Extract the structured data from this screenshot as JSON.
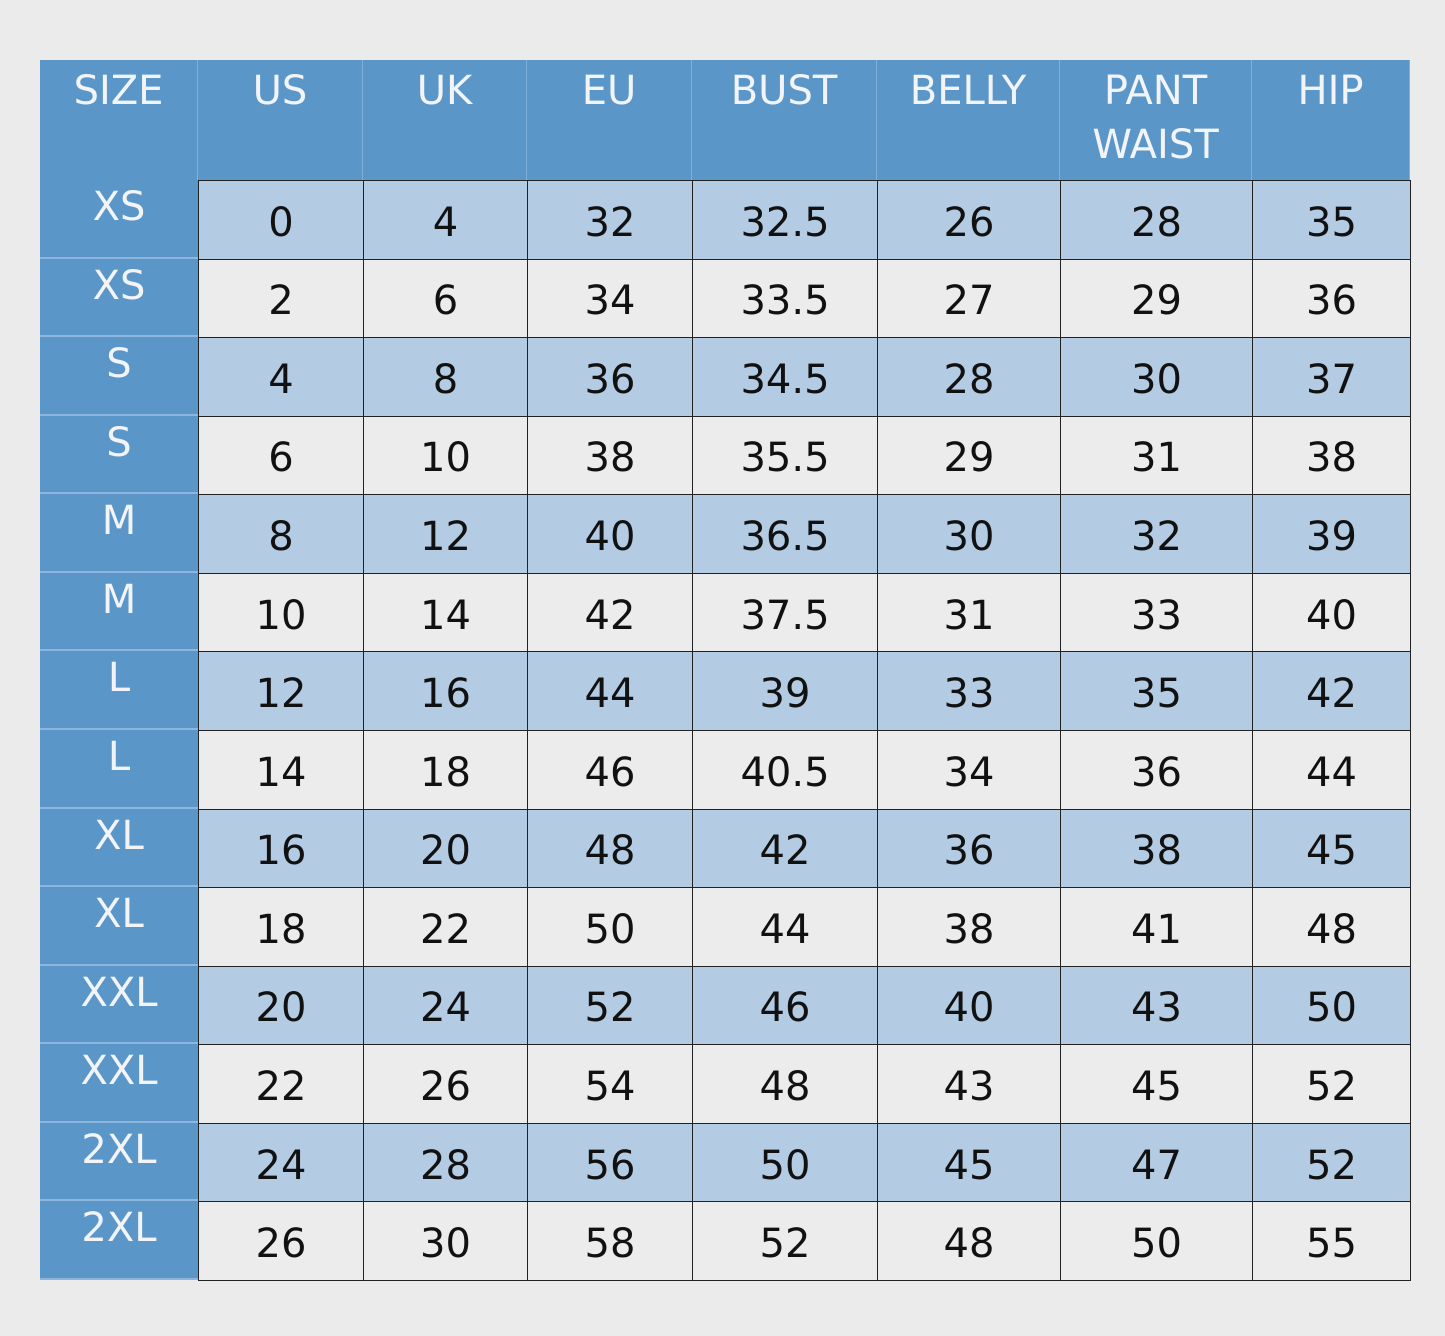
{
  "table": {
    "columns": [
      "SIZE",
      "US",
      "UK",
      "EU",
      "BUST",
      "BELLY",
      "PANT WAIST",
      "HIP"
    ],
    "rows": [
      [
        "XS",
        0,
        4,
        32,
        32.5,
        26,
        28,
        35
      ],
      [
        "XS",
        2,
        6,
        34,
        33.5,
        27,
        29,
        36
      ],
      [
        "S",
        4,
        8,
        36,
        34.5,
        28,
        30,
        37
      ],
      [
        "S",
        6,
        10,
        38,
        35.5,
        29,
        31,
        38
      ],
      [
        "M",
        8,
        12,
        40,
        36.5,
        30,
        32,
        39
      ],
      [
        "M",
        10,
        14,
        42,
        37.5,
        31,
        33,
        40
      ],
      [
        "L",
        12,
        16,
        44,
        39,
        33,
        35,
        42
      ],
      [
        "L",
        14,
        18,
        46,
        40.5,
        34,
        36,
        44
      ],
      [
        "XL",
        16,
        20,
        48,
        42,
        36,
        38,
        45
      ],
      [
        "XL",
        18,
        22,
        50,
        44,
        38,
        41,
        48
      ],
      [
        "XXL",
        20,
        24,
        52,
        46,
        40,
        43,
        50
      ],
      [
        "XXL",
        22,
        26,
        54,
        48,
        43,
        45,
        52
      ],
      [
        "2XL",
        24,
        28,
        56,
        50,
        45,
        47,
        52
      ],
      [
        "2XL",
        26,
        30,
        58,
        52,
        48,
        50,
        55
      ]
    ]
  }
}
